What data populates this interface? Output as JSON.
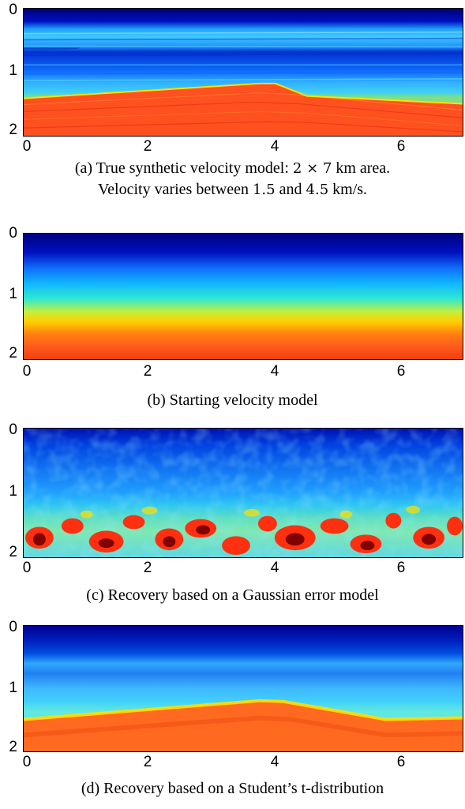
{
  "panels": [
    {
      "id": "a",
      "ytick_labels": [
        "0",
        "1",
        "2"
      ],
      "xtick_labels": [
        "0",
        "2",
        "4",
        "6"
      ],
      "caption_line1_pre": "(a) True synthetic velocity model: ",
      "caption_math1": "2 × 7",
      "caption_line1_post": " km area.",
      "caption_line2_pre": "Velocity varies between ",
      "caption_math2": "1.5",
      "caption_line2_mid": " and ",
      "caption_math3": "4.5",
      "caption_line2_post": " km/s."
    },
    {
      "id": "b",
      "ytick_labels": [
        "0",
        "1",
        "2"
      ],
      "xtick_labels": [
        "0",
        "2",
        "4",
        "6"
      ],
      "caption": "(b) Starting velocity model"
    },
    {
      "id": "c",
      "ytick_labels": [
        "0",
        "1",
        "2"
      ],
      "xtick_labels": [
        "0",
        "2",
        "4",
        "6"
      ],
      "caption": "(c) Recovery based on a Gaussian error model"
    },
    {
      "id": "d",
      "ytick_labels": [
        "0",
        "1",
        "2"
      ],
      "xtick_labels": [
        "0",
        "2",
        "4",
        "6"
      ],
      "caption": "(d) Recovery based on a Student’s t-distribution"
    }
  ],
  "colors": {
    "deep_blue": "#00008f",
    "blue": "#0050ff",
    "cyan": "#00d0ff",
    "yellow": "#ffe000",
    "orange": "#ff5a1e",
    "dark_red": "#7f0000"
  }
}
